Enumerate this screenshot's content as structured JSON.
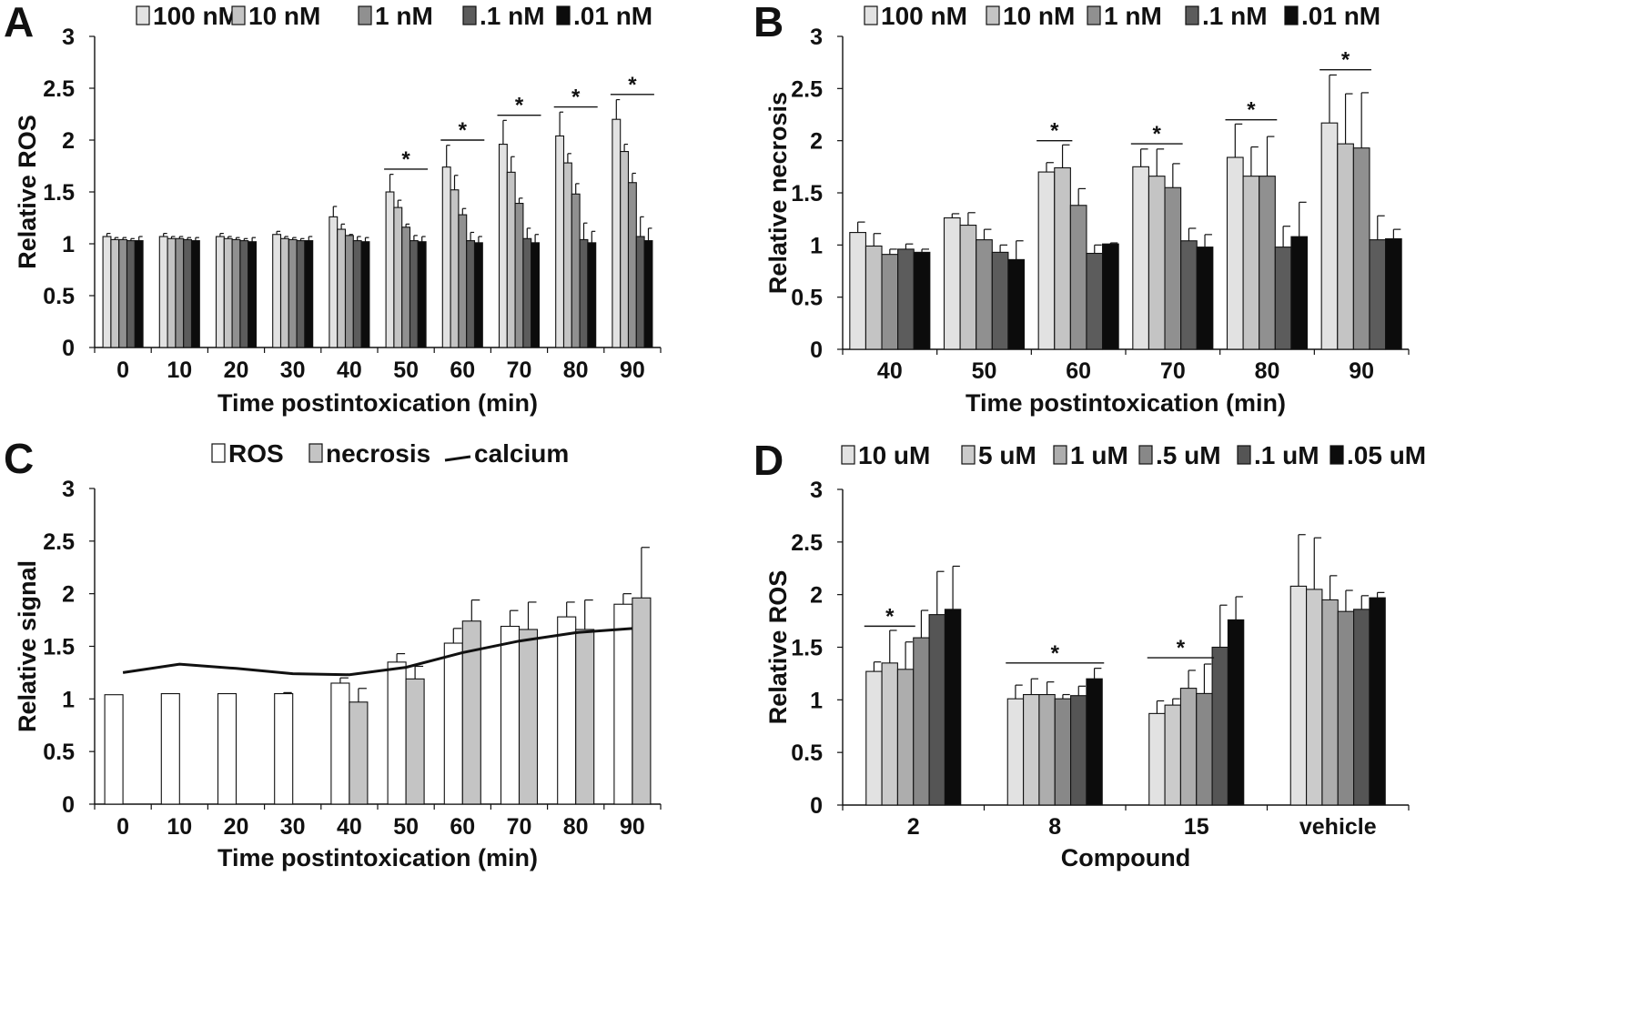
{
  "figure": {
    "panels": [
      "A",
      "B",
      "C",
      "D"
    ]
  },
  "chart_data": [
    {
      "panel": "A",
      "type": "bar",
      "title": "",
      "xlabel": "Time postintoxication (min)",
      "ylabel": "Relative ROS",
      "ylim": [
        0,
        3
      ],
      "yticks": [
        "0",
        "0.5",
        "1",
        "1.5",
        "2",
        "2.5",
        "3"
      ],
      "categories": [
        "0",
        "10",
        "20",
        "30",
        "40",
        "50",
        "60",
        "70",
        "80",
        "90"
      ],
      "legend": [
        "100 nM",
        "10 nM",
        "1 nM",
        ".1 nM",
        ".01 nM"
      ],
      "colors": [
        "#e2e2e2",
        "#c4c4c4",
        "#909090",
        "#5c5c5c",
        "#0c0c0c"
      ],
      "series": [
        {
          "name": "100 nM",
          "values": [
            1.07,
            1.07,
            1.07,
            1.09,
            1.26,
            1.5,
            1.74,
            1.96,
            2.04,
            2.2
          ],
          "errors": [
            0.03,
            0.03,
            0.03,
            0.03,
            0.1,
            0.17,
            0.21,
            0.23,
            0.23,
            0.19
          ]
        },
        {
          "name": "10 nM",
          "values": [
            1.04,
            1.05,
            1.05,
            1.05,
            1.14,
            1.35,
            1.52,
            1.69,
            1.78,
            1.89
          ],
          "errors": [
            0.02,
            0.02,
            0.02,
            0.02,
            0.05,
            0.07,
            0.14,
            0.15,
            0.09,
            0.07
          ]
        },
        {
          "name": "1 nM",
          "values": [
            1.04,
            1.05,
            1.04,
            1.04,
            1.08,
            1.16,
            1.28,
            1.39,
            1.48,
            1.59
          ],
          "errors": [
            0.02,
            0.02,
            0.02,
            0.02,
            0.01,
            0.03,
            0.06,
            0.05,
            0.1,
            0.09
          ]
        },
        {
          "name": ".1 nM",
          "values": [
            1.03,
            1.04,
            1.03,
            1.03,
            1.03,
            1.03,
            1.03,
            1.05,
            1.04,
            1.07
          ],
          "errors": [
            0.02,
            0.02,
            0.02,
            0.02,
            0.04,
            0.05,
            0.08,
            0.1,
            0.16,
            0.19
          ]
        },
        {
          "name": ".01 nM",
          "values": [
            1.03,
            1.03,
            1.02,
            1.03,
            1.02,
            1.02,
            1.01,
            1.01,
            1.01,
            1.03
          ],
          "errors": [
            0.04,
            0.03,
            0.04,
            0.04,
            0.04,
            0.05,
            0.06,
            0.08,
            0.11,
            0.12
          ]
        }
      ],
      "significance": [
        {
          "label": "*",
          "category": "50",
          "from_series": 0,
          "to_series": 4,
          "y": 1.72
        },
        {
          "label": "*",
          "category": "60",
          "from_series": 0,
          "to_series": 4,
          "y": 2.0
        },
        {
          "label": "*",
          "category": "70",
          "from_series": 0,
          "to_series": 4,
          "y": 2.24
        },
        {
          "label": "*",
          "category": "80",
          "from_series": 0,
          "to_series": 4,
          "y": 2.32
        },
        {
          "label": "*",
          "category": "90",
          "from_series": 0,
          "to_series": 4,
          "y": 2.44
        }
      ]
    },
    {
      "panel": "B",
      "type": "bar",
      "title": "",
      "xlabel": "Time postintoxication (min)",
      "ylabel": "Relative necrosis",
      "ylim": [
        0,
        3
      ],
      "yticks": [
        "0",
        "0.5",
        "1",
        "1.5",
        "2",
        "2.5",
        "3"
      ],
      "categories": [
        "40",
        "50",
        "60",
        "70",
        "80",
        "90"
      ],
      "legend": [
        "100 nM",
        "10 nM",
        "1 nM",
        ".1 nM",
        ".01 nM"
      ],
      "colors": [
        "#e2e2e2",
        "#c4c4c4",
        "#909090",
        "#5c5c5c",
        "#0c0c0c"
      ],
      "series": [
        {
          "name": "100 nM",
          "values": [
            1.12,
            1.26,
            1.7,
            1.75,
            1.84,
            2.17
          ],
          "errors": [
            0.1,
            0.04,
            0.09,
            0.17,
            0.32,
            0.46
          ]
        },
        {
          "name": "10 nM",
          "values": [
            0.99,
            1.19,
            1.74,
            1.66,
            1.66,
            1.97
          ],
          "errors": [
            0.12,
            0.12,
            0.22,
            0.26,
            0.28,
            0.48
          ]
        },
        {
          "name": "1 nM",
          "values": [
            0.91,
            1.05,
            1.38,
            1.55,
            1.66,
            1.93
          ],
          "errors": [
            0.05,
            0.1,
            0.16,
            0.23,
            0.38,
            0.53
          ]
        },
        {
          "name": ".1 nM",
          "values": [
            0.96,
            0.93,
            0.92,
            1.04,
            0.98,
            1.05
          ],
          "errors": [
            0.05,
            0.07,
            0.08,
            0.12,
            0.2,
            0.23
          ]
        },
        {
          "name": ".01 nM",
          "values": [
            0.93,
            0.86,
            1.01,
            0.98,
            1.08,
            1.06
          ],
          "errors": [
            0.03,
            0.18,
            0.01,
            0.12,
            0.33,
            0.09
          ]
        }
      ],
      "significance": [
        {
          "label": "*",
          "category": "60",
          "from_series": 0,
          "to_series": 1,
          "y": 2.0
        },
        {
          "label": "*",
          "category": "70",
          "from_series": 0,
          "to_series": 2,
          "y": 1.97
        },
        {
          "label": "*",
          "category": "80",
          "from_series": 0,
          "to_series": 2,
          "y": 2.2
        },
        {
          "label": "*",
          "category": "90",
          "from_series": 0,
          "to_series": 2,
          "y": 2.68
        }
      ]
    },
    {
      "panel": "C",
      "type": "bar",
      "title": "",
      "xlabel": "Time postintoxication (min)",
      "ylabel": "Relative signal",
      "ylim": [
        0,
        3
      ],
      "yticks": [
        "0",
        "0.5",
        "1",
        "1.5",
        "2",
        "2.5",
        "3"
      ],
      "categories": [
        "0",
        "10",
        "20",
        "30",
        "40",
        "50",
        "60",
        "70",
        "80",
        "90"
      ],
      "legend": [
        "ROS",
        "necrosis",
        "calcium"
      ],
      "colors": [
        "#ffffff",
        "#c4c4c4",
        "#111111"
      ],
      "series": [
        {
          "name": "ROS",
          "kind": "bar",
          "values": [
            1.04,
            1.05,
            1.05,
            1.05,
            1.15,
            1.35,
            1.53,
            1.69,
            1.78,
            1.9
          ],
          "errors": [
            0,
            0,
            0,
            0.01,
            0.05,
            0.08,
            0.14,
            0.15,
            0.14,
            0.1
          ]
        },
        {
          "name": "necrosis",
          "kind": "bar",
          "values": [
            null,
            null,
            null,
            null,
            0.97,
            1.19,
            1.74,
            1.66,
            1.66,
            1.96
          ],
          "errors": [
            null,
            null,
            null,
            null,
            0.13,
            0.12,
            0.2,
            0.26,
            0.28,
            0.48
          ]
        },
        {
          "name": "calcium",
          "kind": "line",
          "values": [
            1.25,
            1.33,
            1.29,
            1.24,
            1.23,
            1.3,
            1.44,
            1.55,
            1.63,
            1.67
          ]
        }
      ]
    },
    {
      "panel": "D",
      "type": "bar",
      "title": "",
      "xlabel": "Compound",
      "ylabel": "Relative ROS",
      "ylim": [
        0,
        3
      ],
      "yticks": [
        "0",
        "0.5",
        "1",
        "1.5",
        "2",
        "2.5",
        "3"
      ],
      "categories": [
        "2",
        "8",
        "15",
        "vehicle"
      ],
      "legend": [
        "10 uM",
        "5 uM",
        "1 uM",
        ".5 uM",
        ".1 uM",
        ".05 uM"
      ],
      "colors": [
        "#e2e2e2",
        "#cbcbcb",
        "#adadad",
        "#888888",
        "#555555",
        "#0c0c0c"
      ],
      "series": [
        {
          "name": "10 uM",
          "values": [
            1.27,
            1.01,
            0.87,
            2.08
          ],
          "errors": [
            0.09,
            0.13,
            0.12,
            0.49
          ]
        },
        {
          "name": "5 uM",
          "values": [
            1.35,
            1.05,
            0.95,
            2.05
          ],
          "errors": [
            0.31,
            0.15,
            0.06,
            0.49
          ]
        },
        {
          "name": "1 uM",
          "values": [
            1.29,
            1.05,
            1.11,
            1.95
          ],
          "errors": [
            0.26,
            0.12,
            0.17,
            0.23
          ]
        },
        {
          "name": ".5 uM",
          "values": [
            1.59,
            1.01,
            1.06,
            1.84
          ],
          "errors": [
            0.26,
            0.04,
            0.28,
            0.2
          ]
        },
        {
          "name": ".1 uM",
          "values": [
            1.81,
            1.04,
            1.5,
            1.86
          ],
          "errors": [
            0.41,
            0.09,
            0.4,
            0.13
          ]
        },
        {
          "name": ".05 uM",
          "values": [
            1.86,
            1.2,
            1.76,
            1.97
          ],
          "errors": [
            0.41,
            0.1,
            0.22,
            0.05
          ]
        }
      ],
      "significance": [
        {
          "label": "*",
          "category": "2",
          "from_series": 0,
          "to_series": 2,
          "y": 1.7
        },
        {
          "label": "*",
          "category": "8",
          "from_series": 0,
          "to_series": 5,
          "y": 1.35
        },
        {
          "label": "*",
          "category": "15",
          "from_series": 0,
          "to_series": 3,
          "y": 1.4
        }
      ]
    }
  ]
}
